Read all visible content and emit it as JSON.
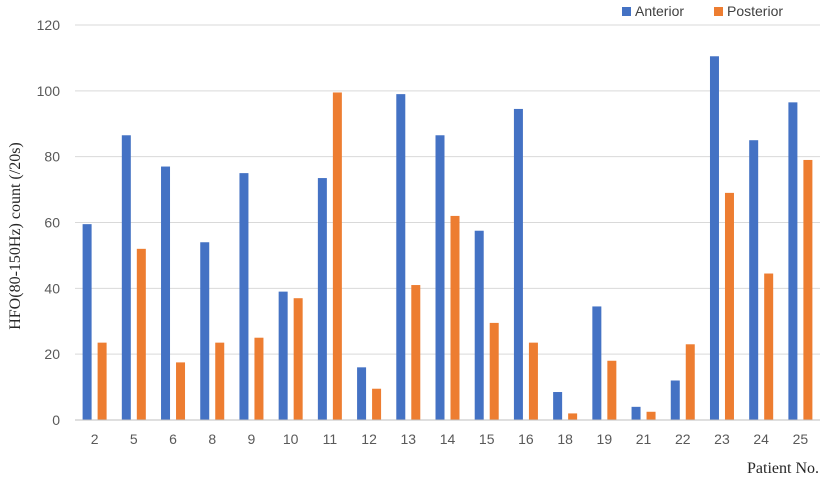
{
  "chart_data": {
    "type": "bar",
    "title": "",
    "xlabel": "Patient No.",
    "ylabel": "HFO(80-150Hz) count (/20s)",
    "ylim": [
      0,
      120
    ],
    "yticks": [
      0,
      20,
      40,
      60,
      80,
      100,
      120
    ],
    "grid": true,
    "legend_position": "top-right",
    "categories": [
      "2",
      "5",
      "6",
      "8",
      "9",
      "10",
      "11",
      "12",
      "13",
      "14",
      "15",
      "16",
      "18",
      "19",
      "21",
      "22",
      "23",
      "24",
      "25"
    ],
    "series": [
      {
        "name": "Anterior",
        "color": "#4472C4",
        "values": [
          59.5,
          86.5,
          77,
          54,
          75,
          39,
          73.5,
          16,
          99,
          86.5,
          57.5,
          94.5,
          8.5,
          34.5,
          4,
          12,
          110.5,
          85,
          96.5
        ]
      },
      {
        "name": "Posterior",
        "color": "#ED7D31",
        "values": [
          23.5,
          52,
          17.5,
          23.5,
          25,
          37,
          99.5,
          9.5,
          41,
          62,
          29.5,
          23.5,
          2,
          18,
          2.5,
          23,
          69,
          44.5,
          79
        ]
      }
    ]
  }
}
